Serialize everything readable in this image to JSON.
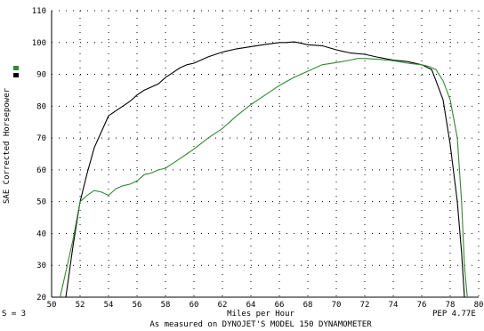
{
  "chart_data": {
    "type": "line",
    "xlabel": "Miles per Hour",
    "ylabel": "SAE Corrected Horsepower",
    "xlim": [
      50,
      80
    ],
    "ylim": [
      20,
      110
    ],
    "x_ticks": [
      50,
      52,
      54,
      56,
      58,
      60,
      62,
      64,
      66,
      68,
      70,
      72,
      74,
      76,
      78,
      80
    ],
    "y_ticks": [
      20,
      30,
      40,
      50,
      60,
      70,
      80,
      90,
      100,
      110
    ],
    "grid": true,
    "legend": "swatches at left, no text",
    "series": [
      {
        "color": "#000000",
        "x": [
          51.0,
          51.5,
          52.0,
          52.5,
          53.0,
          53.5,
          54.0,
          54.5,
          55.0,
          55.5,
          56.0,
          56.5,
          57.0,
          57.5,
          58.0,
          58.5,
          59.0,
          59.5,
          60.0,
          61.0,
          62.0,
          63.0,
          64.0,
          65.0,
          66.0,
          66.5,
          67.0,
          67.3,
          68.0,
          69.0,
          70.0,
          71.0,
          72.0,
          73.0,
          74.0,
          75.0,
          76.0,
          76.7,
          77.0,
          77.5,
          78.0,
          78.5,
          78.8,
          79.0,
          79.1
        ],
        "values": [
          20,
          36,
          50,
          59,
          67,
          72,
          77,
          78.5,
          80,
          81.5,
          83.5,
          85,
          86,
          87,
          89,
          90.5,
          92,
          93,
          93.5,
          95.5,
          97,
          98,
          98.7,
          99.4,
          100,
          100,
          100.2,
          100,
          99.3,
          99,
          97.7,
          96.7,
          96.3,
          95.3,
          94.5,
          94,
          93,
          91.5,
          88,
          82,
          68,
          50,
          34,
          20,
          18
        ]
      },
      {
        "color": "#2e8b2e",
        "x": [
          50.6,
          51.0,
          51.5,
          52.0,
          52.5,
          53.0,
          53.5,
          54.0,
          54.5,
          55.0,
          55.5,
          56.0,
          56.5,
          57.0,
          57.5,
          58.0,
          58.5,
          59.0,
          59.5,
          60.0,
          61.0,
          62.0,
          63.0,
          64.0,
          65.0,
          66.0,
          67.0,
          68.0,
          69.0,
          70.0,
          71.0,
          71.5,
          72.0,
          73.0,
          74.0,
          75.0,
          76.0,
          76.5,
          77.0,
          77.5,
          78.0,
          78.5,
          78.8,
          79.0,
          79.2,
          79.3
        ],
        "values": [
          20,
          28,
          38,
          50,
          52,
          53.5,
          53,
          52,
          54,
          55,
          55.5,
          56.5,
          58.5,
          59,
          60,
          60.5,
          62,
          63.5,
          65,
          66.5,
          70,
          73,
          77,
          80.5,
          83.5,
          86.5,
          89,
          91,
          93,
          93.7,
          94.5,
          95,
          95,
          94.7,
          94.3,
          93.5,
          93,
          92.5,
          91.5,
          88,
          82,
          70,
          50,
          30,
          20,
          18
        ]
      }
    ]
  },
  "footer": {
    "smoothing": "S = 3",
    "peak_label": "PEP 4.77E",
    "caption": "As measured on DYNOJET'S MODEL 150 DYNAMOMETER"
  },
  "colors": {
    "legend_swatch_top": "#2e8b2e",
    "legend_swatch_bottom": "#000000"
  }
}
